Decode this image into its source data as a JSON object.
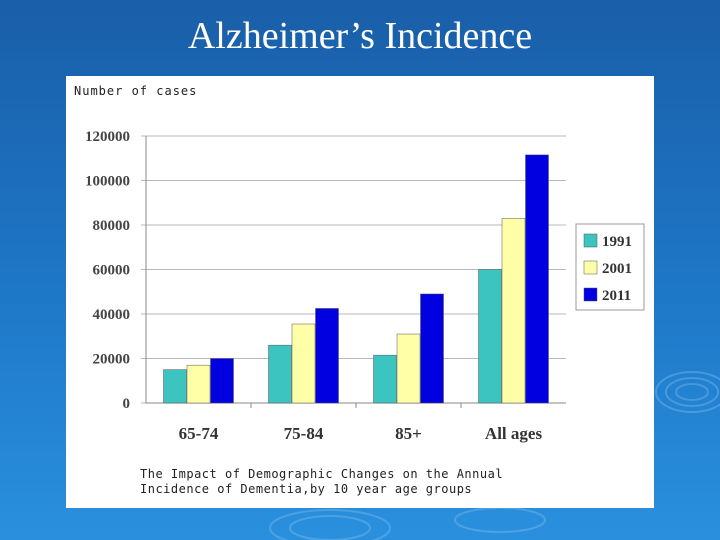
{
  "slide": {
    "title": "Alzheimer’s Incidence"
  },
  "colors": {
    "background": "#1e78c8",
    "series": [
      "#3cc4c0",
      "#ffffa8",
      "#0000e0"
    ]
  },
  "chart_data": {
    "type": "bar",
    "title": "",
    "ylabel": "Number of cases",
    "caption": "The Impact of Demographic Changes on the Annual Incidence of Dementia,by 10 year age groups",
    "categories": [
      "65-74",
      "75-84",
      "85+",
      "All ages"
    ],
    "series": [
      {
        "name": "1991",
        "values": [
          15000,
          26000,
          21500,
          60000
        ]
      },
      {
        "name": "2001",
        "values": [
          17000,
          35500,
          31000,
          83000
        ]
      },
      {
        "name": "2011",
        "values": [
          20000,
          42500,
          49000,
          111500
        ]
      }
    ],
    "ylim": [
      0,
      120000
    ],
    "yticks": [
      "0",
      "20000",
      "40000",
      "60000",
      "80000",
      "100000",
      "120000"
    ],
    "grid": true,
    "legend": "right"
  }
}
